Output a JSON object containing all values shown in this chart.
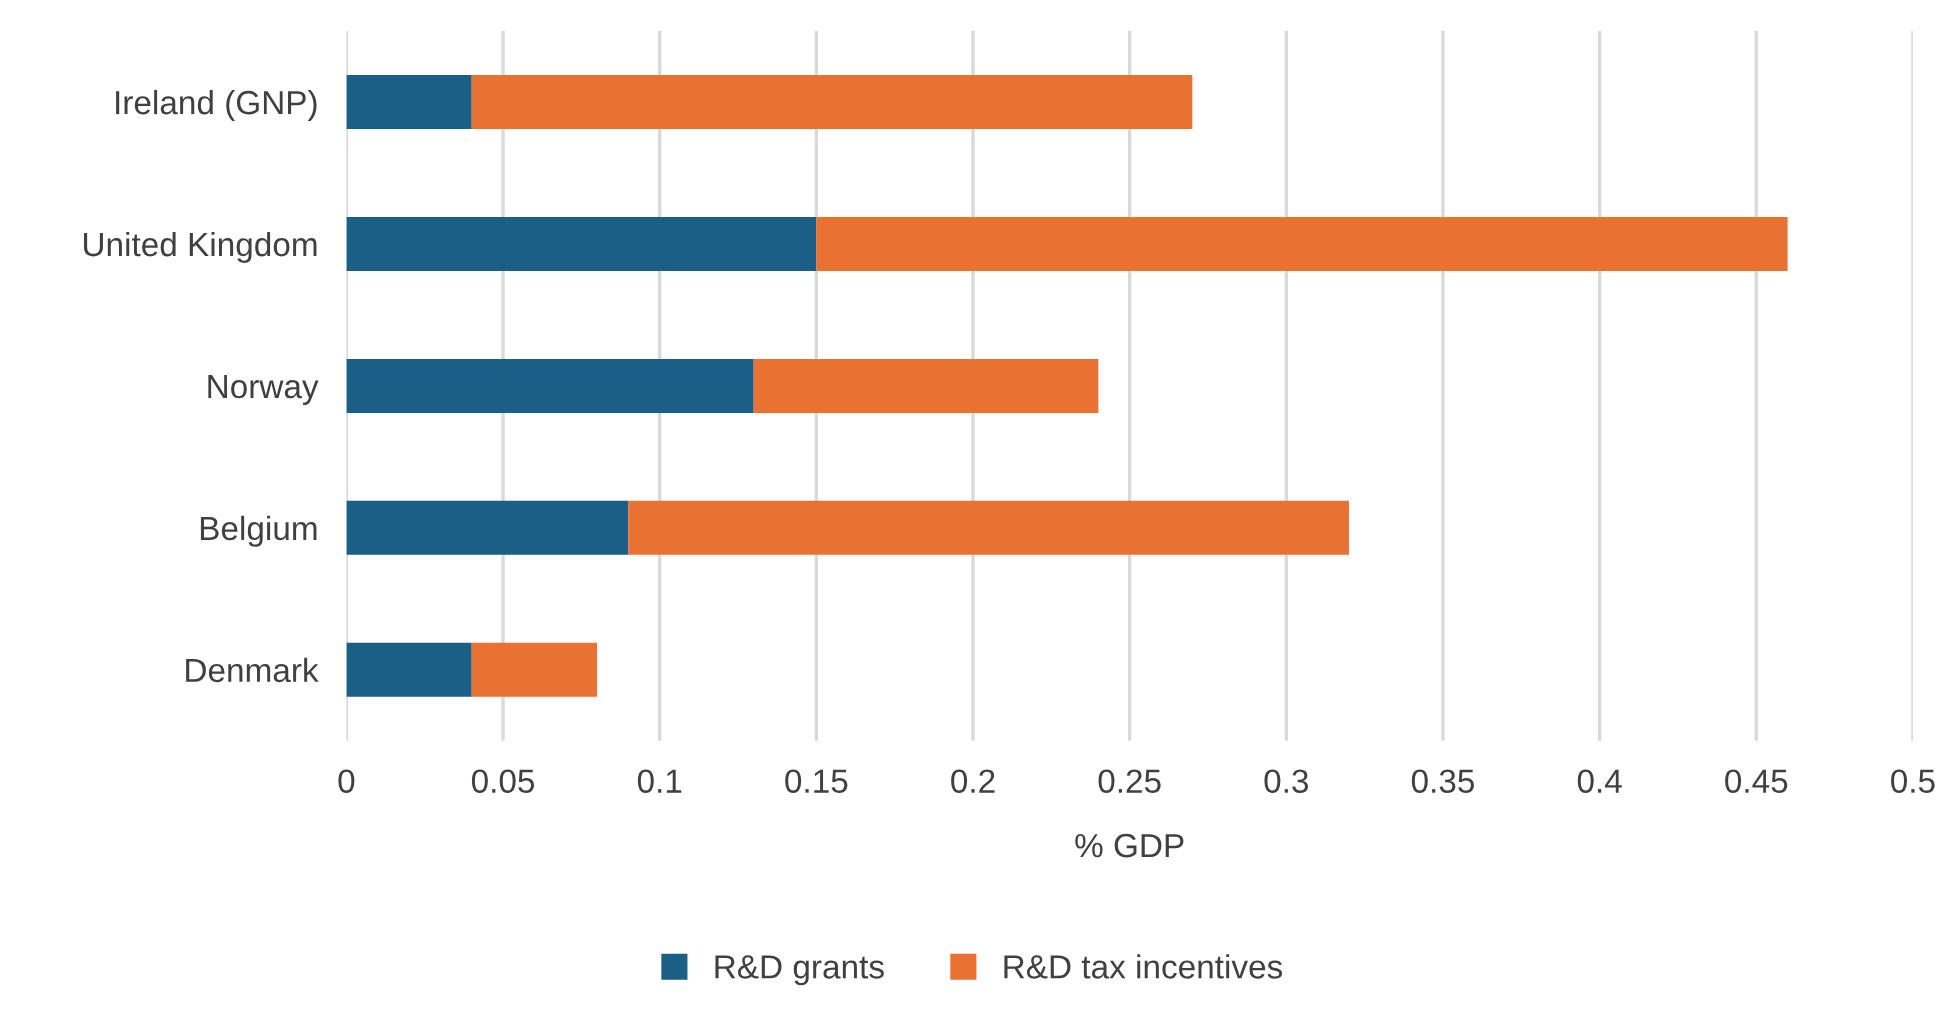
{
  "chart_data": {
    "type": "bar",
    "orientation": "horizontal",
    "stacked": true,
    "xlabel": "% GDP",
    "categories": [
      "Ireland (GNP)",
      "United Kingdom",
      "Norway",
      "Belgium",
      "Denmark"
    ],
    "series": [
      {
        "name": "R&D grants",
        "color": "#1b5e86",
        "values": [
          0.04,
          0.15,
          0.13,
          0.09,
          0.04
        ]
      },
      {
        "name": "R&D tax incentives",
        "color": "#e97132",
        "values": [
          0.23,
          0.31,
          0.11,
          0.23,
          0.04
        ]
      }
    ],
    "xlim": [
      0,
      0.5
    ],
    "xticks": [
      0,
      0.05,
      0.1,
      0.15,
      0.2,
      0.25,
      0.3,
      0.35,
      0.4,
      0.45,
      0.5
    ],
    "grid": "x",
    "legend": "bottom"
  }
}
